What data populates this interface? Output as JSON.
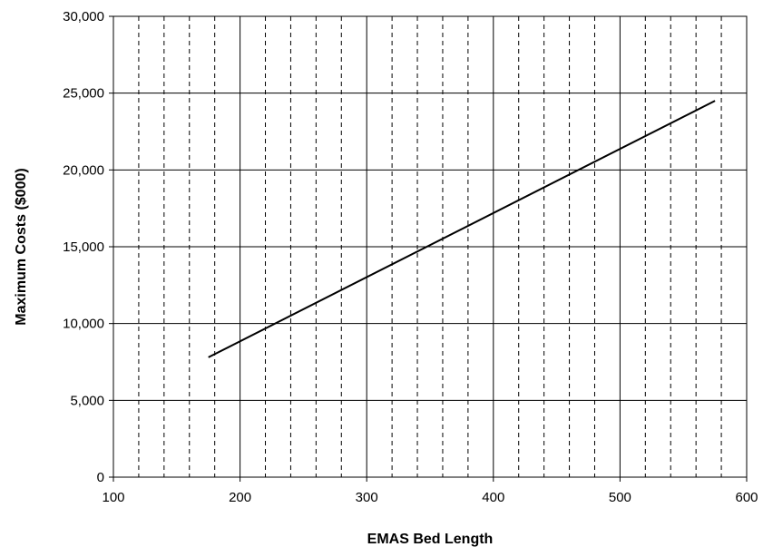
{
  "chart_data": {
    "type": "line",
    "title": "",
    "xlabel": "EMAS Bed Length",
    "ylabel": "Maximum Costs ($000)",
    "xlim": [
      100,
      600
    ],
    "ylim": [
      0,
      30000
    ],
    "x_ticks": [
      100,
      200,
      300,
      400,
      500,
      600
    ],
    "x_tick_labels": [
      "100",
      "200",
      "300",
      "400",
      "500",
      "600"
    ],
    "y_ticks": [
      0,
      5000,
      10000,
      15000,
      20000,
      25000,
      30000
    ],
    "y_tick_labels": [
      "0",
      "5,000",
      "10,000",
      "15,000",
      "20,000",
      "25,000",
      "30,000"
    ],
    "x_minor_step": 20,
    "grid": true,
    "legend": "none",
    "series": [
      {
        "x": [
          175,
          575
        ],
        "y": [
          7800,
          24500
        ],
        "color": "#000000"
      }
    ]
  }
}
